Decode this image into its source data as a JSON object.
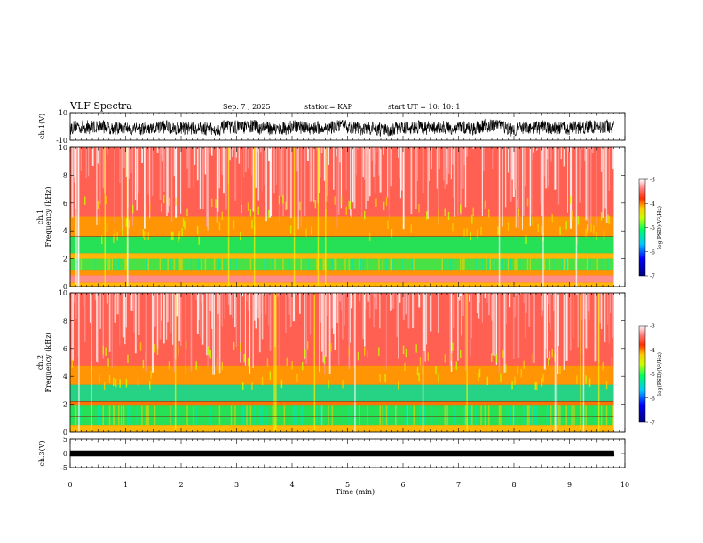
{
  "header": {
    "title": "VLF Spectra",
    "date": "Sep. 7 , 2025",
    "station": "station= KAP",
    "start": "start  UT  =    10: 10: 1"
  },
  "chart_data": [
    {
      "type": "line",
      "name": "ch1-waveform",
      "ylabel": "ch.1(V)",
      "ylim": [
        -10,
        10
      ],
      "yticks": [
        "10",
        "-10"
      ],
      "xlim": [
        0,
        10
      ],
      "data_extent_min": 9.8,
      "amplitude_range": [
        -8,
        6
      ]
    },
    {
      "type": "heatmap",
      "name": "ch1-spectrogram",
      "ylabel": "ch.1\nFrequency  (kHz)",
      "ylim": [
        0,
        10
      ],
      "yticks": [
        "0",
        "2",
        "4",
        "6",
        "8",
        "10"
      ],
      "xlim": [
        0,
        10
      ],
      "data_extent_min": 9.8,
      "bands_khz": [
        {
          "from": 0,
          "to": 0.3,
          "level": -4.2
        },
        {
          "from": 0.3,
          "to": 0.8,
          "level": -3.3
        },
        {
          "from": 0.8,
          "to": 1.2,
          "level": -4.1
        },
        {
          "from": 1.2,
          "to": 2.0,
          "level": -5.0
        },
        {
          "from": 2.0,
          "to": 2.4,
          "level": -4.2
        },
        {
          "from": 2.4,
          "to": 3.6,
          "level": -5.1
        },
        {
          "from": 3.6,
          "to": 5.0,
          "level": -4.1
        },
        {
          "from": 5.0,
          "to": 10.0,
          "level": -3.5
        }
      ],
      "colorbar": {
        "label": "log(PSD)(V²/Hz)",
        "range": [
          -7,
          -3
        ],
        "ticks": [
          "-3",
          "-4",
          "-5",
          "-6",
          "-7"
        ]
      }
    },
    {
      "type": "heatmap",
      "name": "ch2-spectrogram",
      "ylabel": "ch.2\nFrequency  (kHz)",
      "ylim": [
        0,
        10
      ],
      "yticks": [
        "0",
        "2",
        "4",
        "6",
        "8",
        "10"
      ],
      "xlim": [
        0,
        10
      ],
      "data_extent_min": 9.8,
      "bands_khz": [
        {
          "from": 0,
          "to": 0.5,
          "level": -4.2
        },
        {
          "from": 0.5,
          "to": 1.9,
          "level": -5.1
        },
        {
          "from": 1.9,
          "to": 2.2,
          "level": -4.0
        },
        {
          "from": 2.2,
          "to": 3.4,
          "level": -5.3
        },
        {
          "from": 3.4,
          "to": 4.8,
          "level": -4.1
        },
        {
          "from": 4.8,
          "to": 10.0,
          "level": -3.5
        }
      ],
      "colorbar": {
        "label": "log(PSD)(V²/Hz)",
        "range": [
          -7,
          -3
        ],
        "ticks": [
          "-3",
          "-4",
          "-5",
          "-6",
          "-7"
        ]
      }
    },
    {
      "type": "line",
      "name": "ch3-waveform",
      "ylabel": "ch.3(V)",
      "ylim": [
        -5,
        5
      ],
      "yticks": [
        "5",
        "0",
        "-5"
      ],
      "xlim": [
        0,
        10
      ],
      "xlabel": "Time  (min)",
      "xticks": [
        "0",
        "1",
        "2",
        "3",
        "4",
        "5",
        "6",
        "7",
        "8",
        "9",
        "10"
      ],
      "data_extent_min": 9.8,
      "amplitude_range": [
        -1,
        1
      ]
    }
  ]
}
